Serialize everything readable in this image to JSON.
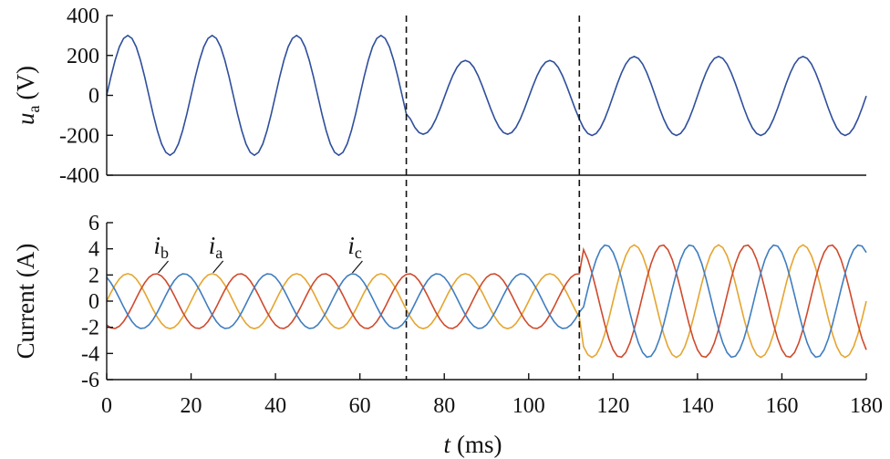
{
  "chart_data": [
    {
      "type": "line",
      "ylabel_symbol": "u",
      "ylabel_subscript": "a",
      "ylabel_unit": "(V)",
      "xlim": [
        0,
        180
      ],
      "ylim": [
        -400,
        400
      ],
      "yticks": [
        -400,
        -200,
        0,
        200,
        400
      ],
      "vlines": [
        71,
        112
      ],
      "x": [
        0,
        1,
        2,
        3,
        4,
        5,
        6,
        7,
        8,
        9,
        10,
        11,
        12,
        13,
        14,
        15,
        16,
        17,
        18,
        19,
        20,
        21,
        22,
        23,
        24,
        25,
        26,
        27,
        28,
        29,
        30,
        31,
        32,
        33,
        34,
        35,
        36,
        37,
        38,
        39,
        40,
        41,
        42,
        43,
        44,
        45,
        46,
        47,
        48,
        49,
        50,
        51,
        52,
        53,
        54,
        55,
        56,
        57,
        58,
        59,
        60,
        61,
        62,
        63,
        64,
        65,
        66,
        67,
        68,
        69,
        70,
        71,
        72,
        73,
        74,
        75,
        76,
        77,
        78,
        79,
        80,
        81,
        82,
        83,
        84,
        85,
        86,
        87,
        88,
        89,
        90,
        91,
        92,
        93,
        94,
        95,
        96,
        97,
        98,
        99,
        100,
        101,
        102,
        103,
        104,
        105,
        106,
        107,
        108,
        109,
        110,
        111,
        112,
        113,
        114,
        115,
        116,
        117,
        118,
        119,
        120,
        121,
        122,
        123,
        124,
        125,
        126,
        127,
        128,
        129,
        130,
        131,
        132,
        133,
        134,
        135,
        136,
        137,
        138,
        139,
        140,
        141,
        142,
        143,
        144,
        145,
        146,
        147,
        148,
        149,
        150,
        151,
        152,
        153,
        154,
        155,
        156,
        157,
        158,
        159,
        160,
        161,
        162,
        163,
        164,
        165,
        166,
        167,
        168,
        169,
        170,
        171,
        172,
        173,
        174,
        175,
        176,
        177,
        178,
        179,
        180
      ],
      "series": [
        {
          "color": "#2f4f9c",
          "values": [
            0,
            93,
            176,
            243,
            285,
            300,
            285,
            243,
            176,
            93,
            0,
            -93,
            -176,
            -243,
            -285,
            -300,
            -285,
            -243,
            -176,
            -93,
            0,
            93,
            176,
            243,
            285,
            300,
            285,
            243,
            176,
            93,
            0,
            -93,
            -176,
            -243,
            -285,
            -300,
            -285,
            -243,
            -176,
            -93,
            0,
            93,
            176,
            243,
            285,
            300,
            285,
            243,
            176,
            93,
            0,
            -93,
            -176,
            -243,
            -285,
            -300,
            -285,
            -243,
            -176,
            -93,
            0,
            93,
            176,
            243,
            285,
            300,
            285,
            243,
            176,
            93,
            0,
            -93,
            -119,
            -160,
            -186,
            -195,
            -186,
            -160,
            -119,
            -67,
            -10,
            47,
            99,
            140,
            166,
            175,
            166,
            140,
            99,
            47,
            -10,
            -67,
            -119,
            -160,
            -186,
            -195,
            -186,
            -160,
            -119,
            -67,
            -10,
            47,
            99,
            140,
            166,
            175,
            166,
            140,
            99,
            47,
            -10,
            -67,
            -119,
            -163,
            -191,
            -201,
            -191,
            -163,
            -119,
            -64,
            -3,
            58,
            113,
            157,
            185,
            195,
            185,
            157,
            113,
            58,
            -3,
            -64,
            -119,
            -163,
            -191,
            -201,
            -191,
            -163,
            -119,
            -64,
            -3,
            58,
            113,
            157,
            185,
            195,
            185,
            157,
            113,
            58,
            -3,
            -64,
            -119,
            -163,
            -191,
            -201,
            -191,
            -163,
            -119,
            -64,
            -3,
            58,
            113,
            157,
            185,
            195,
            185,
            157,
            113,
            58,
            -3,
            -64,
            -119,
            -163,
            -191,
            -201,
            -191,
            -163,
            -119,
            -64,
            -3
          ]
        }
      ]
    },
    {
      "type": "line",
      "ylabel": "Current (A)",
      "xlabel_symbol": "t",
      "xlabel_unit": "(ms)",
      "xlim": [
        0,
        180
      ],
      "xticks": [
        0,
        20,
        40,
        60,
        80,
        100,
        120,
        140,
        160,
        180
      ],
      "ylim": [
        -6,
        6
      ],
      "yticks": [
        -6,
        -4,
        -2,
        0,
        2,
        4,
        6
      ],
      "vlines": [
        71,
        112
      ],
      "x": [
        0,
        1,
        2,
        3,
        4,
        5,
        6,
        7,
        8,
        9,
        10,
        11,
        12,
        13,
        14,
        15,
        16,
        17,
        18,
        19,
        20,
        21,
        22,
        23,
        24,
        25,
        26,
        27,
        28,
        29,
        30,
        31,
        32,
        33,
        34,
        35,
        36,
        37,
        38,
        39,
        40,
        41,
        42,
        43,
        44,
        45,
        46,
        47,
        48,
        49,
        50,
        51,
        52,
        53,
        54,
        55,
        56,
        57,
        58,
        59,
        60,
        61,
        62,
        63,
        64,
        65,
        66,
        67,
        68,
        69,
        70,
        71,
        72,
        73,
        74,
        75,
        76,
        77,
        78,
        79,
        80,
        81,
        82,
        83,
        84,
        85,
        86,
        87,
        88,
        89,
        90,
        91,
        92,
        93,
        94,
        95,
        96,
        97,
        98,
        99,
        100,
        101,
        102,
        103,
        104,
        105,
        106,
        107,
        108,
        109,
        110,
        111,
        112,
        113,
        114,
        115,
        116,
        117,
        118,
        119,
        120,
        121,
        122,
        123,
        124,
        125,
        126,
        127,
        128,
        129,
        130,
        131,
        132,
        133,
        134,
        135,
        136,
        137,
        138,
        139,
        140,
        141,
        142,
        143,
        144,
        145,
        146,
        147,
        148,
        149,
        150,
        151,
        152,
        153,
        154,
        155,
        156,
        157,
        158,
        159,
        160,
        161,
        162,
        163,
        164,
        165,
        166,
        167,
        168,
        169,
        170,
        171,
        172,
        173,
        174,
        175,
        176,
        177,
        178,
        179,
        180
      ],
      "series": [
        {
          "symbol": "i",
          "subscript": "a",
          "color": "#e5a530",
          "values": [
            0,
            0.65,
            1.23,
            1.7,
            2,
            2.1,
            2,
            1.7,
            1.23,
            0.65,
            0,
            -0.65,
            -1.23,
            -1.7,
            -2,
            -2.1,
            -2,
            -1.7,
            -1.23,
            -0.65,
            0,
            0.65,
            1.23,
            1.7,
            2,
            2.1,
            2,
            1.7,
            1.23,
            0.65,
            0,
            -0.65,
            -1.23,
            -1.7,
            -2,
            -2.1,
            -2,
            -1.7,
            -1.23,
            -0.65,
            0,
            0.65,
            1.23,
            1.7,
            2,
            2.1,
            2,
            1.7,
            1.23,
            0.65,
            0,
            -0.65,
            -1.23,
            -1.7,
            -2,
            -2.1,
            -2,
            -1.7,
            -1.23,
            -0.65,
            0,
            0.65,
            1.23,
            1.7,
            2,
            2.1,
            2,
            1.7,
            1.23,
            0.65,
            0,
            -0.65,
            -1.23,
            -1.7,
            -2,
            -2.1,
            -2,
            -1.7,
            -1.23,
            -0.65,
            0,
            0.65,
            1.23,
            1.7,
            2,
            2.1,
            2,
            1.7,
            1.23,
            0.65,
            0,
            -0.65,
            -1.23,
            -1.7,
            -2,
            -2.1,
            -2,
            -1.7,
            -1.23,
            -0.65,
            0,
            0.65,
            1.23,
            1.7,
            2,
            2.1,
            2,
            1.7,
            1.23,
            0.65,
            0,
            -0.65,
            -1.23,
            -3.48,
            -4.09,
            -4.3,
            -4.09,
            -3.48,
            -2.53,
            -1.33,
            0,
            1.33,
            2.53,
            3.48,
            4.09,
            4.3,
            4.09,
            3.48,
            2.53,
            1.33,
            0,
            -1.33,
            -2.53,
            -3.48,
            -4.09,
            -4.3,
            -4.09,
            -3.48,
            -2.53,
            -1.33,
            0,
            1.33,
            2.53,
            3.48,
            4.09,
            4.3,
            4.09,
            3.48,
            2.53,
            1.33,
            0,
            -1.33,
            -2.53,
            -3.48,
            -4.09,
            -4.3,
            -4.09,
            -3.48,
            -2.53,
            -1.33,
            0,
            1.33,
            2.53,
            3.48,
            4.09,
            4.3,
            4.09,
            3.48,
            2.53,
            1.33,
            0,
            -1.33,
            -2.53,
            -3.48,
            -4.09,
            -4.3,
            -4.09,
            -3.48,
            -2.53,
            -1.33,
            0
          ]
        },
        {
          "symbol": "i",
          "subscript": "b",
          "color": "#cf4a2c",
          "values": [
            -1.82,
            -2.05,
            -2.09,
            -1.92,
            -1.56,
            -1.05,
            -0.44,
            0.22,
            0.85,
            1.4,
            1.82,
            2.05,
            2.09,
            1.92,
            1.56,
            1.05,
            0.44,
            -0.22,
            -0.85,
            -1.4,
            -1.82,
            -2.05,
            -2.09,
            -1.92,
            -1.56,
            -1.05,
            -0.44,
            0.22,
            0.85,
            1.4,
            1.82,
            2.05,
            2.09,
            1.92,
            1.56,
            1.05,
            0.44,
            -0.22,
            -0.85,
            -1.4,
            -1.82,
            -2.05,
            -2.09,
            -1.92,
            -1.56,
            -1.05,
            -0.44,
            0.22,
            0.85,
            1.4,
            1.82,
            2.05,
            2.09,
            1.92,
            1.56,
            1.05,
            0.44,
            -0.22,
            -0.85,
            -1.4,
            -1.82,
            -2.05,
            -2.09,
            -1.92,
            -1.56,
            -1.05,
            -0.44,
            0.22,
            0.85,
            1.4,
            1.82,
            2.05,
            2.09,
            1.92,
            1.56,
            1.05,
            0.44,
            -0.22,
            -0.85,
            -1.4,
            -1.82,
            -2.05,
            -2.09,
            -1.92,
            -1.56,
            -1.05,
            -0.44,
            0.22,
            0.85,
            1.4,
            1.82,
            2.05,
            2.09,
            1.92,
            1.56,
            1.05,
            0.44,
            -0.22,
            -0.85,
            -1.4,
            -1.82,
            -2.05,
            -2.09,
            -1.92,
            -1.56,
            -1.05,
            -0.44,
            0.22,
            0.85,
            1.4,
            1.82,
            2.05,
            2.09,
            3.93,
            3.19,
            2.15,
            0.89,
            -0.45,
            -1.75,
            -2.88,
            -3.72,
            -4.21,
            -4.28,
            -3.93,
            -3.19,
            -2.15,
            -0.89,
            0.45,
            1.75,
            2.88,
            3.72,
            4.21,
            4.28,
            3.93,
            3.19,
            2.15,
            0.89,
            -0.45,
            -1.75,
            -2.88,
            -3.72,
            -4.21,
            -4.28,
            -3.93,
            -3.19,
            -2.15,
            -0.89,
            0.45,
            1.75,
            2.88,
            3.72,
            4.21,
            4.28,
            3.93,
            3.19,
            2.15,
            0.89,
            -0.45,
            -1.75,
            -2.88,
            -3.72,
            -4.21,
            -4.28,
            -3.93,
            -3.19,
            -2.15,
            -0.89,
            0.45,
            1.75,
            2.88,
            3.72,
            4.21,
            4.28,
            3.93,
            3.19,
            2.15,
            0.89,
            -0.45,
            -1.75,
            -2.88,
            -3.72
          ]
        },
        {
          "symbol": "i",
          "subscript": "c",
          "color": "#3f7dbf",
          "values": [
            1.82,
            1.4,
            0.85,
            0.22,
            -0.44,
            -1.05,
            -1.56,
            -1.92,
            -2.09,
            -2.05,
            -1.82,
            -1.4,
            -0.85,
            -0.22,
            0.44,
            1.05,
            1.56,
            1.92,
            2.09,
            2.05,
            1.82,
            1.4,
            0.85,
            0.22,
            -0.44,
            -1.05,
            -1.56,
            -1.92,
            -2.09,
            -2.05,
            -1.82,
            -1.4,
            -0.85,
            -0.22,
            0.44,
            1.05,
            1.56,
            1.92,
            2.09,
            2.05,
            1.82,
            1.4,
            0.85,
            0.22,
            -0.44,
            -1.05,
            -1.56,
            -1.92,
            -2.09,
            -2.05,
            -1.82,
            -1.4,
            -0.85,
            -0.22,
            0.44,
            1.05,
            1.56,
            1.92,
            2.09,
            2.05,
            1.82,
            1.4,
            0.85,
            0.22,
            -0.44,
            -1.05,
            -1.56,
            -1.92,
            -2.09,
            -2.05,
            -1.82,
            -1.4,
            -0.85,
            -0.22,
            0.44,
            1.05,
            1.56,
            1.92,
            2.09,
            2.05,
            1.82,
            1.4,
            0.85,
            0.22,
            -0.44,
            -1.05,
            -1.56,
            -1.92,
            -2.09,
            -2.05,
            -1.82,
            -1.4,
            -0.85,
            -0.22,
            0.44,
            1.05,
            1.56,
            1.92,
            2.09,
            2.05,
            1.82,
            1.4,
            0.85,
            0.22,
            -0.44,
            -1.05,
            -1.56,
            -1.92,
            -2.09,
            -2.05,
            -1.82,
            -1.4,
            -0.85,
            -0.45,
            0.89,
            2.15,
            3.19,
            3.93,
            4.28,
            4.21,
            3.72,
            2.88,
            1.75,
            0.45,
            -0.89,
            -2.15,
            -3.19,
            -3.93,
            -4.28,
            -4.21,
            -3.72,
            -2.88,
            -1.75,
            -0.45,
            0.89,
            2.15,
            3.19,
            3.93,
            4.28,
            4.21,
            3.72,
            2.88,
            1.75,
            0.45,
            -0.89,
            -2.15,
            -3.19,
            -3.93,
            -4.28,
            -4.21,
            -3.72,
            -2.88,
            -1.75,
            -0.45,
            0.89,
            2.15,
            3.19,
            3.93,
            4.28,
            4.21,
            3.72,
            2.88,
            1.75,
            0.45,
            -0.89,
            -2.15,
            -3.19,
            -3.93,
            -4.28,
            -4.21,
            -3.72,
            -2.88,
            -1.75,
            -0.45,
            0.89,
            2.15,
            3.19,
            3.93,
            4.28,
            4.21,
            3.72
          ]
        }
      ]
    }
  ]
}
